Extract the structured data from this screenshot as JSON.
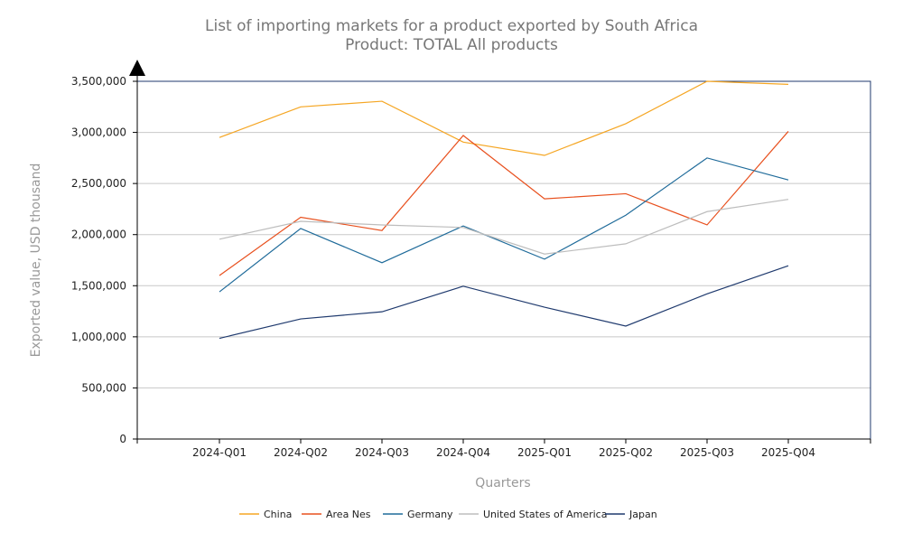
{
  "chart_data": {
    "type": "line",
    "title": "List of importing markets for a product exported by South Africa",
    "subtitle": "Product: TOTAL All products",
    "xlabel": "Quarters",
    "ylabel": "Exported value, USD thousand",
    "ylim": [
      0,
      3500000
    ],
    "yticks": [
      0,
      500000,
      1000000,
      1500000,
      2000000,
      2500000,
      3000000,
      3500000
    ],
    "ytick_labels": [
      "0",
      "500,000",
      "1,000,000",
      "1,500,000",
      "2,000,000",
      "2,500,000",
      "3,000,000",
      "3,500,000"
    ],
    "categories": [
      "2024-Q01",
      "2024-Q02",
      "2024-Q03",
      "2024-Q04",
      "2025-Q01",
      "2025-Q02",
      "2025-Q03",
      "2025-Q04"
    ],
    "grid": true,
    "legend_position": "bottom",
    "series": [
      {
        "name": "China",
        "color": "#f5a623",
        "values": [
          2950000,
          3250000,
          3305000,
          2905000,
          2775000,
          3085000,
          3500000,
          3470000
        ]
      },
      {
        "name": "Area Nes",
        "color": "#e8501e",
        "values": [
          1600000,
          2170000,
          2040000,
          2970000,
          2350000,
          2400000,
          2095000,
          3010000
        ]
      },
      {
        "name": "Germany",
        "color": "#1f6b9a",
        "values": [
          1440000,
          2060000,
          1725000,
          2085000,
          1760000,
          2190000,
          2750000,
          2535000
        ]
      },
      {
        "name": "United States of America",
        "color": "#bdbdbd",
        "values": [
          1955000,
          2130000,
          2095000,
          2070000,
          1810000,
          1910000,
          2225000,
          2345000
        ]
      },
      {
        "name": "Japan",
        "color": "#1f3a6e",
        "values": [
          985000,
          1175000,
          1245000,
          1495000,
          1290000,
          1105000,
          1420000,
          1695000
        ]
      }
    ]
  }
}
